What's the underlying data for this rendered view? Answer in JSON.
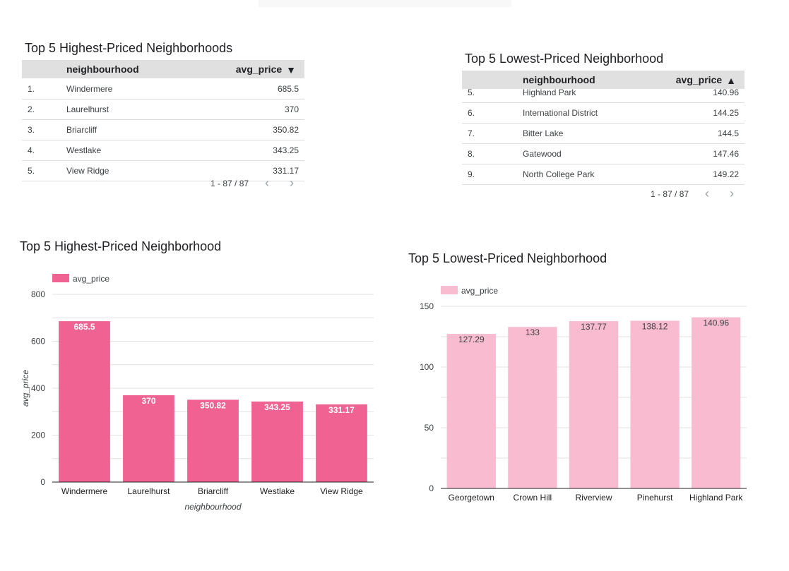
{
  "table_high": {
    "title": "Top 5 Highest-Priced Neighborhoods",
    "col_name": "neighbourhood",
    "col_value": "avg_price",
    "sort_icon": "▼",
    "rows": [
      {
        "num": "1.",
        "name": "Windermere",
        "value": "685.5"
      },
      {
        "num": "2.",
        "name": "Laurelhurst",
        "value": "370"
      },
      {
        "num": "3.",
        "name": "Briarcliff",
        "value": "350.82"
      },
      {
        "num": "4.",
        "name": "Westlake",
        "value": "343.25"
      },
      {
        "num": "5.",
        "name": "View Ridge",
        "value": "331.17"
      }
    ],
    "pagination": "1 - 87 / 87",
    "prev": "‹",
    "next": "›"
  },
  "table_low": {
    "title": "Top 5 Lowest-Priced Neighborhood",
    "col_name": "neighbourhood",
    "col_value": "avg_price",
    "sort_icon": "▲",
    "rows": [
      {
        "num": "5.",
        "name": "Highland Park",
        "value": "140.96"
      },
      {
        "num": "6.",
        "name": "International District",
        "value": "144.25"
      },
      {
        "num": "7.",
        "name": "Bitter Lake",
        "value": "144.5"
      },
      {
        "num": "8.",
        "name": "Gatewood",
        "value": "147.46"
      },
      {
        "num": "9.",
        "name": "North College Park",
        "value": "149.22"
      }
    ],
    "pagination": "1 - 87 / 87",
    "prev": "‹",
    "next": "›"
  },
  "chart_data": [
    {
      "type": "bar",
      "title": "Top 5 Highest-Priced Neighborhood",
      "legend": "avg_price",
      "categories": [
        "Windermere",
        "Laurelhurst",
        "Briarcliff",
        "Westlake",
        "View Ridge"
      ],
      "values": [
        685.5,
        370,
        350.82,
        343.25,
        331.17
      ],
      "labels": [
        "685.5",
        "370",
        "350.82",
        "343.25",
        "331.17"
      ],
      "xlabel": "neighbourhood",
      "ylabel": "avg_price",
      "ylim": [
        0,
        800
      ],
      "yticks": [
        0,
        200,
        400,
        600,
        800
      ],
      "gridlines": [
        0,
        100,
        200,
        300,
        400,
        500,
        600,
        700,
        800
      ],
      "color": "#f06292",
      "label_color": "#ffffff"
    },
    {
      "type": "bar",
      "title": "Top 5 Lowest-Priced Neighborhood",
      "legend": "avg_price",
      "categories": [
        "Georgetown",
        "Crown Hill",
        "Riverview",
        "Pinehurst",
        "Highland Park"
      ],
      "values": [
        127.29,
        133,
        137.77,
        138.12,
        140.96
      ],
      "labels": [
        "127.29",
        "133",
        "137.77",
        "138.12",
        "140.96"
      ],
      "xlabel": "",
      "ylabel": "",
      "ylim": [
        0,
        150
      ],
      "yticks": [
        0,
        50,
        100,
        150
      ],
      "gridlines": [
        0,
        25,
        50,
        75,
        100,
        125,
        150
      ],
      "color": "#f8bbd0",
      "label_color": "#3c4043"
    }
  ]
}
